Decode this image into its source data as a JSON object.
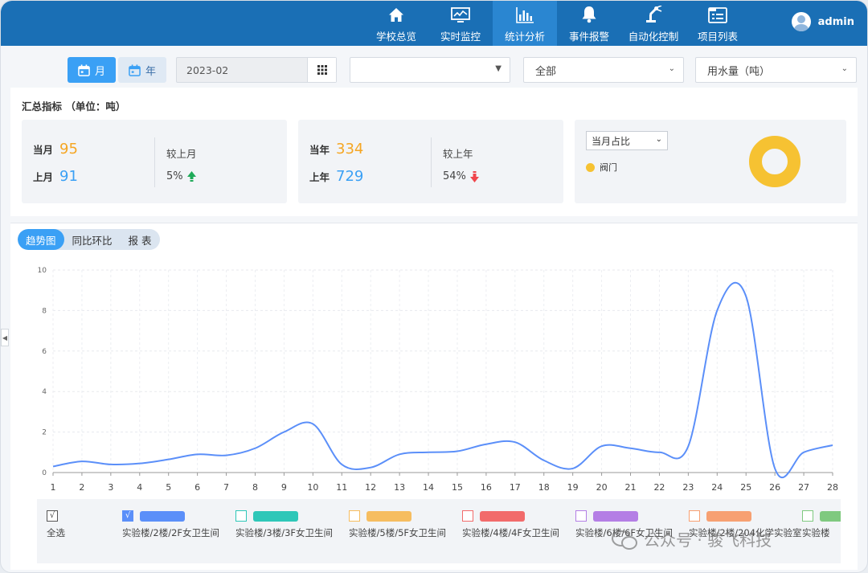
{
  "header": {
    "nav": [
      {
        "label": "学校总览",
        "icon": "home-icon"
      },
      {
        "label": "实时监控",
        "icon": "monitor-icon"
      },
      {
        "label": "统计分析",
        "icon": "bar-chart-icon",
        "active": true
      },
      {
        "label": "事件报警",
        "icon": "bell-icon"
      },
      {
        "label": "自动化控制",
        "icon": "robot-arm-icon"
      },
      {
        "label": "项目列表",
        "icon": "list-icon"
      }
    ],
    "user": "admin"
  },
  "toolbar": {
    "month_label": "月",
    "year_label": "年",
    "date_value": "2023-02",
    "select1_value": "",
    "select2_value": "全部",
    "select3_value": "用水量（吨）"
  },
  "summary": {
    "title": "汇总指标 （单位：吨）",
    "month_card": {
      "current_label": "当月",
      "current_value": "95",
      "prev_label": "上月",
      "prev_value": "91",
      "cmp_label": "较上月",
      "cmp_value": "5%",
      "trend": "up"
    },
    "year_card": {
      "current_label": "当年",
      "current_value": "334",
      "prev_label": "上年",
      "prev_value": "729",
      "cmp_label": "较上年",
      "cmp_value": "54%",
      "trend": "down"
    },
    "ratio": {
      "select_value": "当月占比",
      "legend": "阀门",
      "color": "#f6c232"
    }
  },
  "tabs": [
    "趋势图",
    "同比环比",
    "报  表"
  ],
  "chart_data": {
    "type": "line",
    "x": [
      1,
      2,
      3,
      4,
      5,
      6,
      7,
      8,
      9,
      10,
      11,
      12,
      13,
      14,
      15,
      16,
      17,
      18,
      19,
      20,
      21,
      22,
      23,
      24,
      25,
      26,
      27,
      28
    ],
    "series": [
      {
        "name": "实验楼/2楼/2F女卫生间",
        "color": "#5b8ff9",
        "values": [
          0.3,
          0.55,
          0.4,
          0.45,
          0.65,
          0.9,
          0.85,
          1.2,
          2.0,
          2.4,
          0.4,
          0.25,
          0.9,
          1.0,
          1.05,
          1.4,
          1.5,
          0.6,
          0.2,
          1.3,
          1.2,
          1.0,
          1.3,
          8.0,
          8.7,
          0.2,
          1.0,
          1.35
        ]
      }
    ],
    "ylim": [
      0,
      10
    ],
    "yticks": [
      0,
      2,
      4,
      6,
      8,
      10
    ],
    "grid": true,
    "legend": {
      "select_all": "全选",
      "items": [
        {
          "name": "实验楼/2楼/2F女卫生间",
          "color": "#5b8ff9",
          "checked": true
        },
        {
          "name": "实验楼/3楼/3F女卫生间",
          "color": "#2ec7b8",
          "checked": false
        },
        {
          "name": "实验楼/5楼/5F女卫生间",
          "color": "#f6bd60",
          "checked": false
        },
        {
          "name": "实验楼/4楼/4F女卫生间",
          "color": "#f26b6b",
          "checked": false
        },
        {
          "name": "实验楼/6楼/6F女卫生间",
          "color": "#b47ee5",
          "checked": false
        },
        {
          "name": "实验楼/2楼/204化学实验室",
          "color": "#f7a072",
          "checked": false
        },
        {
          "name": "实验楼",
          "color": "#7fc97f",
          "checked": false
        }
      ]
    }
  },
  "watermark": "公众号 · 骏飞科技"
}
